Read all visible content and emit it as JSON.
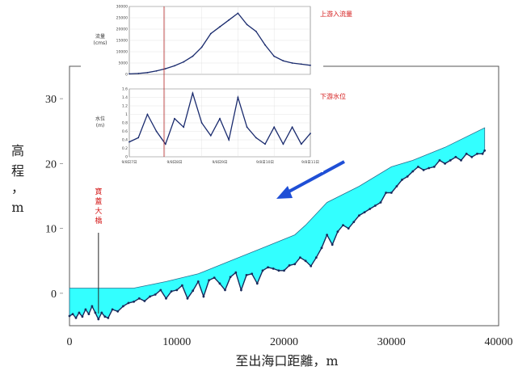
{
  "chart_data": [
    {
      "type": "area",
      "xlabel": "至出海口距離，m",
      "ylabel_chars": [
        "高",
        "程",
        "，",
        "m"
      ],
      "xlim": [
        0,
        40000
      ],
      "ylim": [
        -5,
        35
      ],
      "xticks": [
        0,
        10000,
        20000,
        30000,
        40000
      ],
      "yticks": [
        0,
        10,
        20,
        30
      ],
      "bridge_label_chars": [
        "寶",
        "蓋",
        "大",
        "橋"
      ],
      "bridge_x": 2700,
      "colors": {
        "fill": "#33ffff",
        "bed": "#1a2b5c",
        "bridge_label": "#d41a1a",
        "arrow": "#1f4fd6"
      },
      "water_surface": {
        "x": [
          0,
          6000,
          9000,
          12000,
          15000,
          18000,
          21000,
          22000,
          24000,
          27000,
          30000,
          32000,
          35000,
          38700
        ],
        "y": [
          0.8,
          0.8,
          1.8,
          3.0,
          5.0,
          7.0,
          9.0,
          10.5,
          14.0,
          16.5,
          19.5,
          20.5,
          22.5,
          25.5
        ]
      },
      "river_bed": {
        "x": [
          0,
          300,
          600,
          900,
          1200,
          1500,
          1800,
          2100,
          2400,
          2700,
          3000,
          3300,
          3600,
          4000,
          4500,
          5000,
          5500,
          6000,
          6500,
          7000,
          7500,
          8000,
          8500,
          9000,
          9500,
          10000,
          10500,
          11000,
          11500,
          12000,
          12500,
          13000,
          13500,
          14000,
          14500,
          15000,
          15500,
          16000,
          16500,
          17000,
          17500,
          18000,
          18500,
          19000,
          19500,
          20000,
          20500,
          21000,
          21500,
          22000,
          22500,
          23000,
          23500,
          24000,
          24500,
          25000,
          25500,
          26000,
          26500,
          27000,
          27500,
          28000,
          28500,
          29000,
          29500,
          30000,
          30500,
          31000,
          31500,
          32000,
          32500,
          33000,
          33500,
          34000,
          34500,
          35000,
          35500,
          36000,
          36500,
          37000,
          37500,
          38000,
          38500,
          38700
        ],
        "y": [
          -3.5,
          -3.2,
          -3.8,
          -3.0,
          -3.6,
          -2.5,
          -3.2,
          -2.0,
          -3.0,
          -4.0,
          -3.0,
          -3.6,
          -3.8,
          -2.5,
          -2.8,
          -2.0,
          -1.5,
          -1.3,
          -0.8,
          -1.2,
          -0.5,
          -0.2,
          0.5,
          -0.8,
          0.3,
          0.5,
          1.2,
          -0.8,
          0.4,
          1.8,
          -0.5,
          2.0,
          2.4,
          1.5,
          0.5,
          2.5,
          3.2,
          0.5,
          2.8,
          3.0,
          1.5,
          3.5,
          4.0,
          3.8,
          3.5,
          3.5,
          4.3,
          4.5,
          5.5,
          5.0,
          4.2,
          5.5,
          7.0,
          9.0,
          7.5,
          9.5,
          10.5,
          10.0,
          11.0,
          12.0,
          12.5,
          13.0,
          13.5,
          14.0,
          15.5,
          15.5,
          16.5,
          17.5,
          18.0,
          18.8,
          19.5,
          19.0,
          19.3,
          19.5,
          20.5,
          20.0,
          20.5,
          21.0,
          20.5,
          21.5,
          21.0,
          21.5,
          21.5,
          22.0
        ]
      }
    },
    {
      "type": "line",
      "title": "上游入流量",
      "ylabel_chars": [
        "流量",
        "(cms)"
      ],
      "yticks": [
        0,
        5000,
        10000,
        15000,
        20000,
        25000,
        30000
      ],
      "ylim": [
        0,
        30000
      ],
      "x": [
        0,
        5,
        10,
        15,
        20,
        25,
        30,
        35,
        40,
        45,
        50,
        55,
        60,
        65,
        70,
        75,
        80,
        85,
        90,
        95,
        100
      ],
      "values": [
        200,
        400,
        800,
        1500,
        2500,
        3800,
        5500,
        8000,
        12000,
        18000,
        21000,
        24000,
        27000,
        22000,
        19000,
        13000,
        8000,
        6000,
        5000,
        4500,
        4000
      ]
    },
    {
      "type": "line",
      "title": "下游水位",
      "ylabel_chars": [
        "水位",
        "(m)"
      ],
      "yticks": [
        0,
        0.2,
        0.4,
        0.6,
        0.8,
        1.0,
        1.2,
        1.4,
        1.6
      ],
      "ylim": [
        0,
        1.6
      ],
      "xticks": [
        "9/8日7日",
        "9/8日8日",
        "9/8日9日",
        "9/8日10日",
        "9/8日11日"
      ],
      "x": [
        0,
        5,
        10,
        15,
        20,
        25,
        30,
        35,
        40,
        45,
        50,
        55,
        60,
        65,
        70,
        75,
        80,
        85,
        90,
        95,
        100
      ],
      "values": [
        0.35,
        0.45,
        1.0,
        0.6,
        0.3,
        0.9,
        0.7,
        1.5,
        0.8,
        0.5,
        0.9,
        0.4,
        1.4,
        0.7,
        0.45,
        0.3,
        0.7,
        0.3,
        0.7,
        0.3,
        0.55
      ]
    }
  ]
}
